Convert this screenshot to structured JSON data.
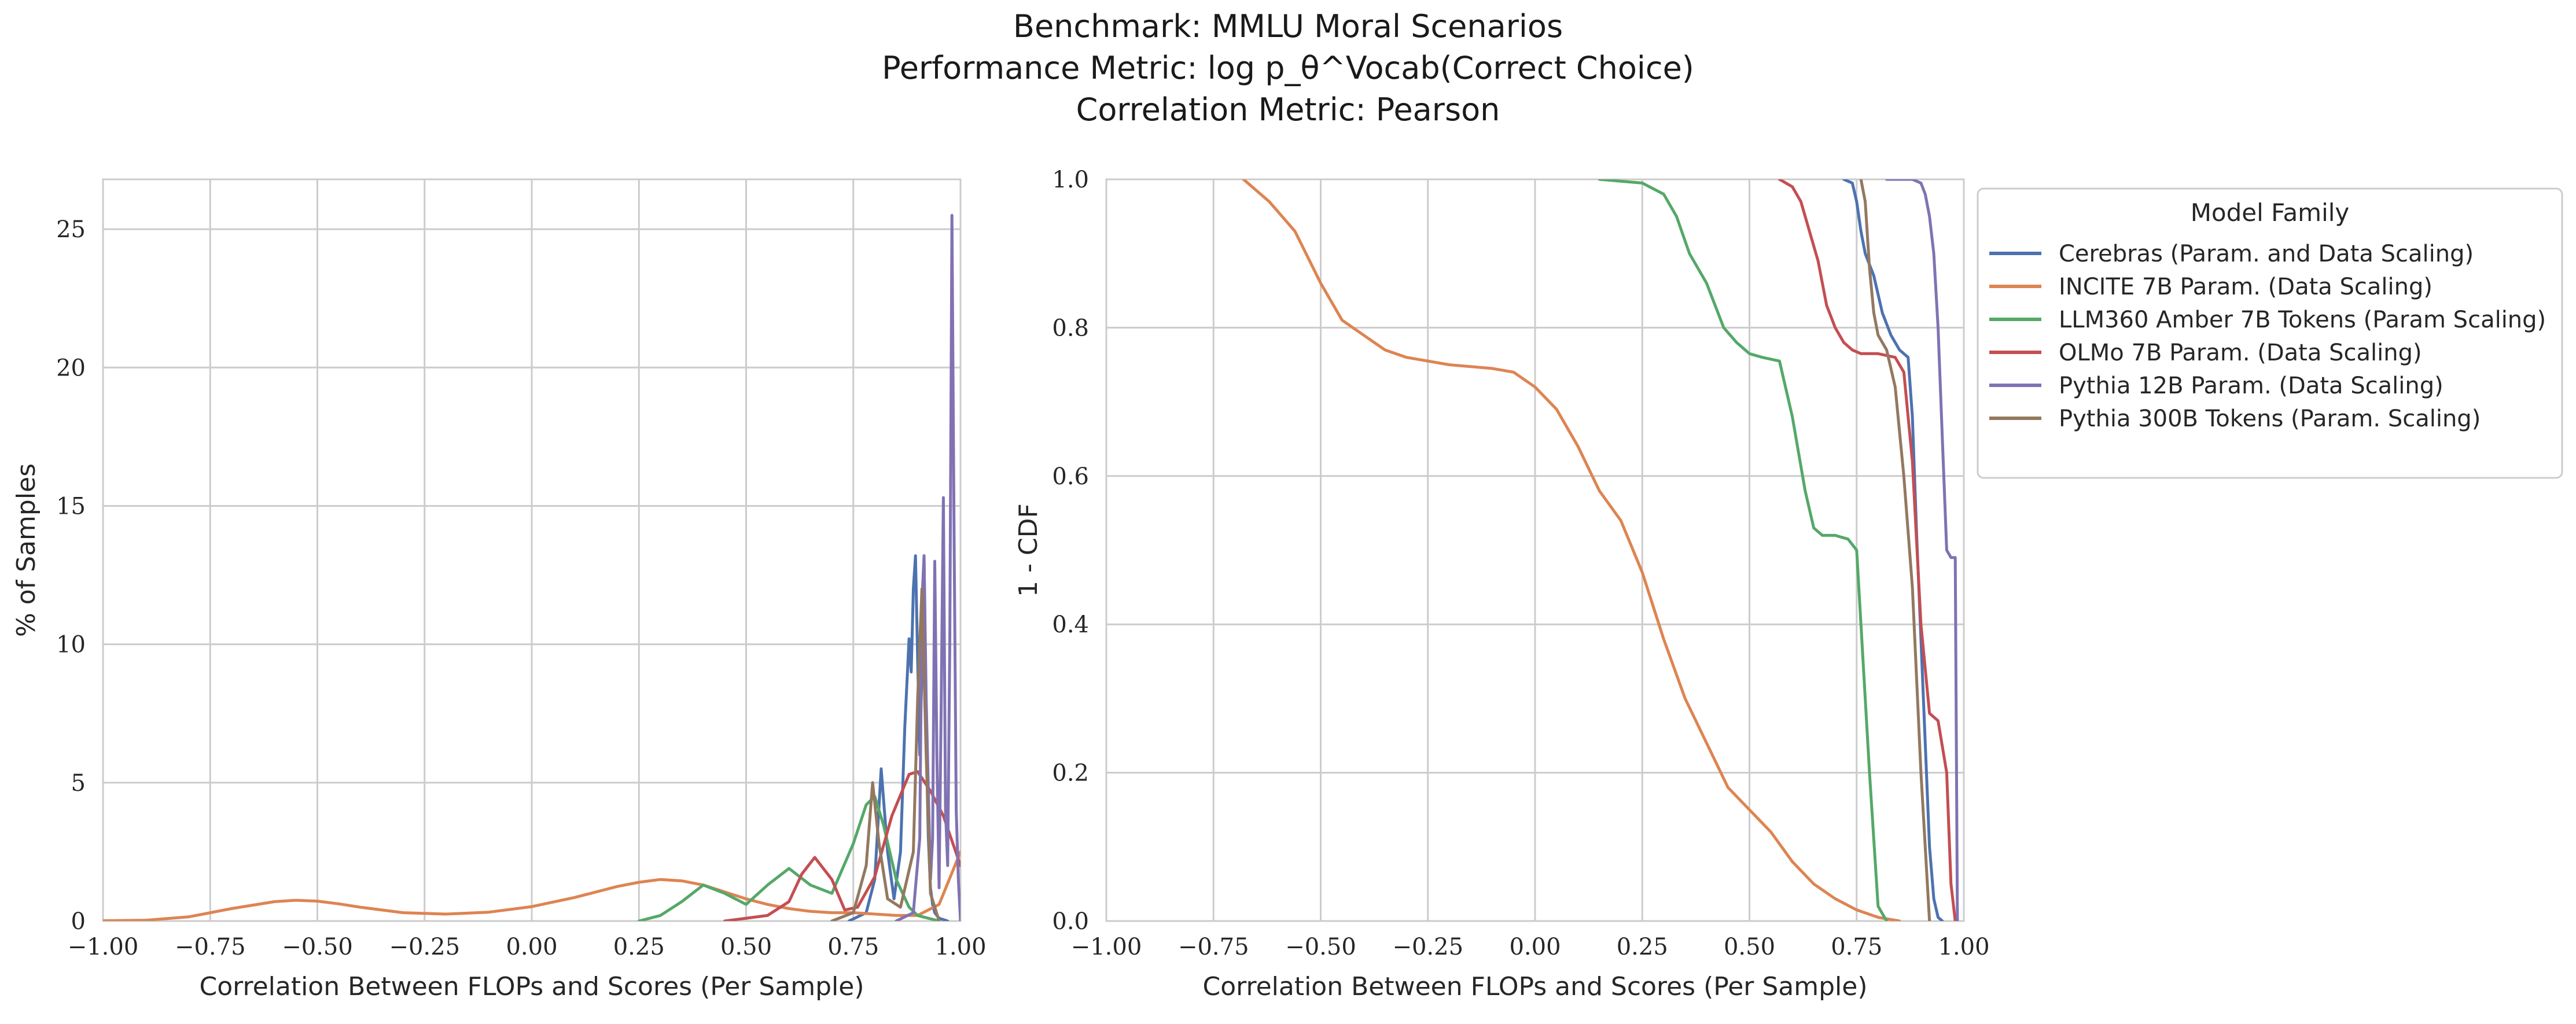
{
  "title_lines": [
    "Benchmark: MMLU Moral Scenarios",
    "Performance Metric: log p_θ^Vocab(Correct Choice)",
    "Correlation Metric: Pearson"
  ],
  "legend": {
    "title": "Model Family",
    "entries": [
      {
        "name": "Cerebras (Param. and Data Scaling)",
        "color": "#4c72b0"
      },
      {
        "name": "INCITE 7B Param. (Data Scaling)",
        "color": "#dd8452"
      },
      {
        "name": "LLM360 Amber 7B Tokens (Param Scaling)",
        "color": "#55a868"
      },
      {
        "name": "OLMo 7B Param. (Data Scaling)",
        "color": "#c44e52"
      },
      {
        "name": "Pythia 12B Param. (Data Scaling)",
        "color": "#8172b3"
      },
      {
        "name": "Pythia 300B Tokens (Param. Scaling)",
        "color": "#937860"
      }
    ]
  },
  "chart_data": [
    {
      "type": "line",
      "subtype": "kde",
      "xlabel": "Correlation Between FLOPs and Scores (Per Sample)",
      "ylabel": "% of Samples",
      "xlim": [
        -1.0,
        1.0
      ],
      "ylim": [
        0,
        26.8
      ],
      "xticks": [
        -1.0,
        -0.75,
        -0.5,
        -0.25,
        0.0,
        0.25,
        0.5,
        0.75,
        1.0
      ],
      "xtick_labels": [
        "−1.00",
        "−0.75",
        "−0.50",
        "−0.25",
        "0.00",
        "0.25",
        "0.50",
        "0.75",
        "1.00"
      ],
      "yticks": [
        0,
        5,
        10,
        15,
        20,
        25
      ],
      "ytick_labels": [
        "0",
        "5",
        "10",
        "15",
        "20",
        "25"
      ],
      "grid": true,
      "series": [
        {
          "name": "Cerebras (Param. and Data Scaling)",
          "color": "#4c72b0",
          "x": [
            0.74,
            0.78,
            0.8,
            0.815,
            0.83,
            0.845,
            0.86,
            0.87,
            0.88,
            0.885,
            0.89,
            0.895,
            0.9,
            0.905,
            0.91,
            0.915,
            0.92,
            0.925,
            0.93,
            0.935,
            0.94,
            0.95,
            0.96,
            0.97
          ],
          "y": [
            0,
            0.3,
            1.5,
            5.5,
            2.5,
            0.8,
            2.5,
            7.0,
            10.2,
            9.0,
            12.0,
            13.2,
            9.5,
            6.0,
            9.0,
            13.2,
            6.5,
            3.0,
            1.2,
            0.6,
            0.3,
            0.1,
            0.05,
            0
          ]
        },
        {
          "name": "INCITE 7B Param. (Data Scaling)",
          "color": "#dd8452",
          "x": [
            -1.0,
            -0.9,
            -0.8,
            -0.7,
            -0.6,
            -0.55,
            -0.5,
            -0.45,
            -0.4,
            -0.3,
            -0.2,
            -0.1,
            0.0,
            0.1,
            0.2,
            0.25,
            0.3,
            0.35,
            0.4,
            0.45,
            0.5,
            0.55,
            0.6,
            0.65,
            0.7,
            0.75,
            0.8,
            0.85,
            0.9,
            0.95,
            1.0
          ],
          "y": [
            0.01,
            0.03,
            0.15,
            0.45,
            0.7,
            0.75,
            0.72,
            0.62,
            0.5,
            0.3,
            0.25,
            0.32,
            0.52,
            0.85,
            1.25,
            1.4,
            1.5,
            1.45,
            1.3,
            1.05,
            0.8,
            0.6,
            0.45,
            0.35,
            0.3,
            0.3,
            0.25,
            0.2,
            0.2,
            0.6,
            2.5
          ]
        },
        {
          "name": "LLM360 Amber 7B Tokens (Param Scaling)",
          "color": "#55a868",
          "x": [
            0.25,
            0.3,
            0.35,
            0.4,
            0.45,
            0.5,
            0.55,
            0.6,
            0.65,
            0.7,
            0.75,
            0.78,
            0.8,
            0.82,
            0.85,
            0.88,
            0.9,
            0.95
          ],
          "y": [
            0.0,
            0.2,
            0.7,
            1.3,
            1.0,
            0.6,
            1.3,
            1.9,
            1.3,
            1.0,
            2.8,
            4.2,
            4.5,
            3.5,
            1.5,
            0.5,
            0.2,
            0
          ]
        },
        {
          "name": "OLMo 7B Param. (Data Scaling)",
          "color": "#c44e52",
          "x": [
            0.45,
            0.55,
            0.6,
            0.63,
            0.66,
            0.7,
            0.73,
            0.76,
            0.8,
            0.84,
            0.88,
            0.9,
            0.93,
            0.96,
            1.0
          ],
          "y": [
            0,
            0.2,
            0.7,
            1.7,
            2.3,
            1.5,
            0.4,
            0.5,
            1.6,
            3.8,
            5.3,
            5.4,
            4.7,
            3.8,
            2.0
          ]
        },
        {
          "name": "Pythia 12B Param. (Data Scaling)",
          "color": "#8172b3",
          "x": [
            0.85,
            0.89,
            0.905,
            0.91,
            0.915,
            0.92,
            0.93,
            0.935,
            0.94,
            0.945,
            0.95,
            0.955,
            0.96,
            0.965,
            0.97,
            0.975,
            0.98,
            0.985,
            0.99,
            0.995,
            1.0
          ],
          "y": [
            0,
            0.3,
            3.0,
            11.5,
            13.2,
            8.0,
            1.5,
            3.0,
            13.0,
            6.0,
            1.2,
            8.0,
            15.3,
            4.0,
            2.0,
            10.0,
            25.5,
            14.0,
            4.0,
            1.5,
            0
          ]
        },
        {
          "name": "Pythia 300B Tokens (Param. Scaling)",
          "color": "#937860",
          "x": [
            0.7,
            0.75,
            0.78,
            0.795,
            0.81,
            0.83,
            0.86,
            0.89,
            0.9,
            0.91,
            0.92,
            0.93,
            0.95
          ],
          "y": [
            0,
            0.3,
            2.0,
            5.0,
            2.8,
            0.8,
            0.5,
            2.5,
            8.0,
            12.0,
            6.0,
            1.0,
            0
          ]
        }
      ]
    },
    {
      "type": "line",
      "subtype": "survival (1 - CDF)",
      "xlabel": "Correlation Between FLOPs and Scores (Per Sample)",
      "ylabel": "1 - CDF",
      "xlim": [
        -1.0,
        1.0
      ],
      "ylim": [
        0.0,
        1.0
      ],
      "xticks": [
        -1.0,
        -0.75,
        -0.5,
        -0.25,
        0.0,
        0.25,
        0.5,
        0.75,
        1.0
      ],
      "xtick_labels": [
        "−1.00",
        "−0.75",
        "−0.50",
        "−0.25",
        "0.00",
        "0.25",
        "0.50",
        "0.75",
        "1.00"
      ],
      "yticks": [
        0.0,
        0.2,
        0.4,
        0.6,
        0.8,
        1.0
      ],
      "ytick_labels": [
        "0.0",
        "0.2",
        "0.4",
        "0.6",
        "0.8",
        "1.0"
      ],
      "grid": true,
      "series": [
        {
          "name": "Cerebras (Param. and Data Scaling)",
          "color": "#4c72b0",
          "x": [
            0.72,
            0.74,
            0.75,
            0.76,
            0.77,
            0.79,
            0.81,
            0.83,
            0.85,
            0.87,
            0.88,
            0.89,
            0.9,
            0.91,
            0.92,
            0.93,
            0.94,
            0.95
          ],
          "y": [
            1.0,
            0.995,
            0.97,
            0.93,
            0.9,
            0.87,
            0.82,
            0.79,
            0.77,
            0.76,
            0.68,
            0.52,
            0.38,
            0.24,
            0.1,
            0.03,
            0.005,
            0.0
          ]
        },
        {
          "name": "INCITE 7B Param. (Data Scaling)",
          "color": "#dd8452",
          "x": [
            -0.68,
            -0.62,
            -0.56,
            -0.5,
            -0.45,
            -0.4,
            -0.35,
            -0.3,
            -0.2,
            -0.1,
            -0.05,
            0.0,
            0.05,
            0.1,
            0.15,
            0.2,
            0.25,
            0.3,
            0.35,
            0.4,
            0.45,
            0.5,
            0.55,
            0.6,
            0.65,
            0.7,
            0.75,
            0.8,
            0.85
          ],
          "y": [
            1.0,
            0.97,
            0.93,
            0.86,
            0.81,
            0.79,
            0.77,
            0.76,
            0.75,
            0.745,
            0.74,
            0.72,
            0.69,
            0.64,
            0.58,
            0.54,
            0.47,
            0.38,
            0.3,
            0.24,
            0.18,
            0.15,
            0.12,
            0.08,
            0.05,
            0.03,
            0.015,
            0.005,
            0.0
          ]
        },
        {
          "name": "LLM360 Amber 7B Tokens (Param Scaling)",
          "color": "#55a868",
          "x": [
            0.15,
            0.25,
            0.3,
            0.33,
            0.36,
            0.4,
            0.44,
            0.47,
            0.5,
            0.53,
            0.57,
            0.6,
            0.63,
            0.65,
            0.67,
            0.7,
            0.73,
            0.75,
            0.78,
            0.8,
            0.82
          ],
          "y": [
            1.0,
            0.995,
            0.98,
            0.95,
            0.9,
            0.86,
            0.8,
            0.78,
            0.765,
            0.76,
            0.755,
            0.68,
            0.58,
            0.53,
            0.52,
            0.52,
            0.515,
            0.5,
            0.2,
            0.02,
            0.0
          ]
        },
        {
          "name": "OLMo 7B Param. (Data Scaling)",
          "color": "#c44e52",
          "x": [
            0.57,
            0.6,
            0.62,
            0.64,
            0.66,
            0.68,
            0.7,
            0.72,
            0.74,
            0.76,
            0.8,
            0.84,
            0.86,
            0.88,
            0.9,
            0.92,
            0.94,
            0.96,
            0.97,
            0.98
          ],
          "y": [
            1.0,
            0.99,
            0.97,
            0.93,
            0.89,
            0.83,
            0.8,
            0.78,
            0.77,
            0.765,
            0.765,
            0.76,
            0.74,
            0.62,
            0.4,
            0.28,
            0.27,
            0.2,
            0.05,
            0.0
          ]
        },
        {
          "name": "Pythia 12B Param. (Data Scaling)",
          "color": "#8172b3",
          "x": [
            0.82,
            0.88,
            0.9,
            0.91,
            0.92,
            0.93,
            0.94,
            0.95,
            0.96,
            0.97,
            0.98,
            0.985
          ],
          "y": [
            1.0,
            1.0,
            0.995,
            0.98,
            0.95,
            0.9,
            0.8,
            0.65,
            0.5,
            0.49,
            0.49,
            0.0
          ]
        },
        {
          "name": "Pythia 300B Tokens (Param. Scaling)",
          "color": "#937860",
          "x": [
            0.76,
            0.77,
            0.78,
            0.79,
            0.8,
            0.82,
            0.84,
            0.86,
            0.88,
            0.9,
            0.92
          ],
          "y": [
            1.0,
            0.97,
            0.88,
            0.82,
            0.79,
            0.77,
            0.72,
            0.6,
            0.45,
            0.2,
            0.0
          ]
        }
      ]
    }
  ]
}
